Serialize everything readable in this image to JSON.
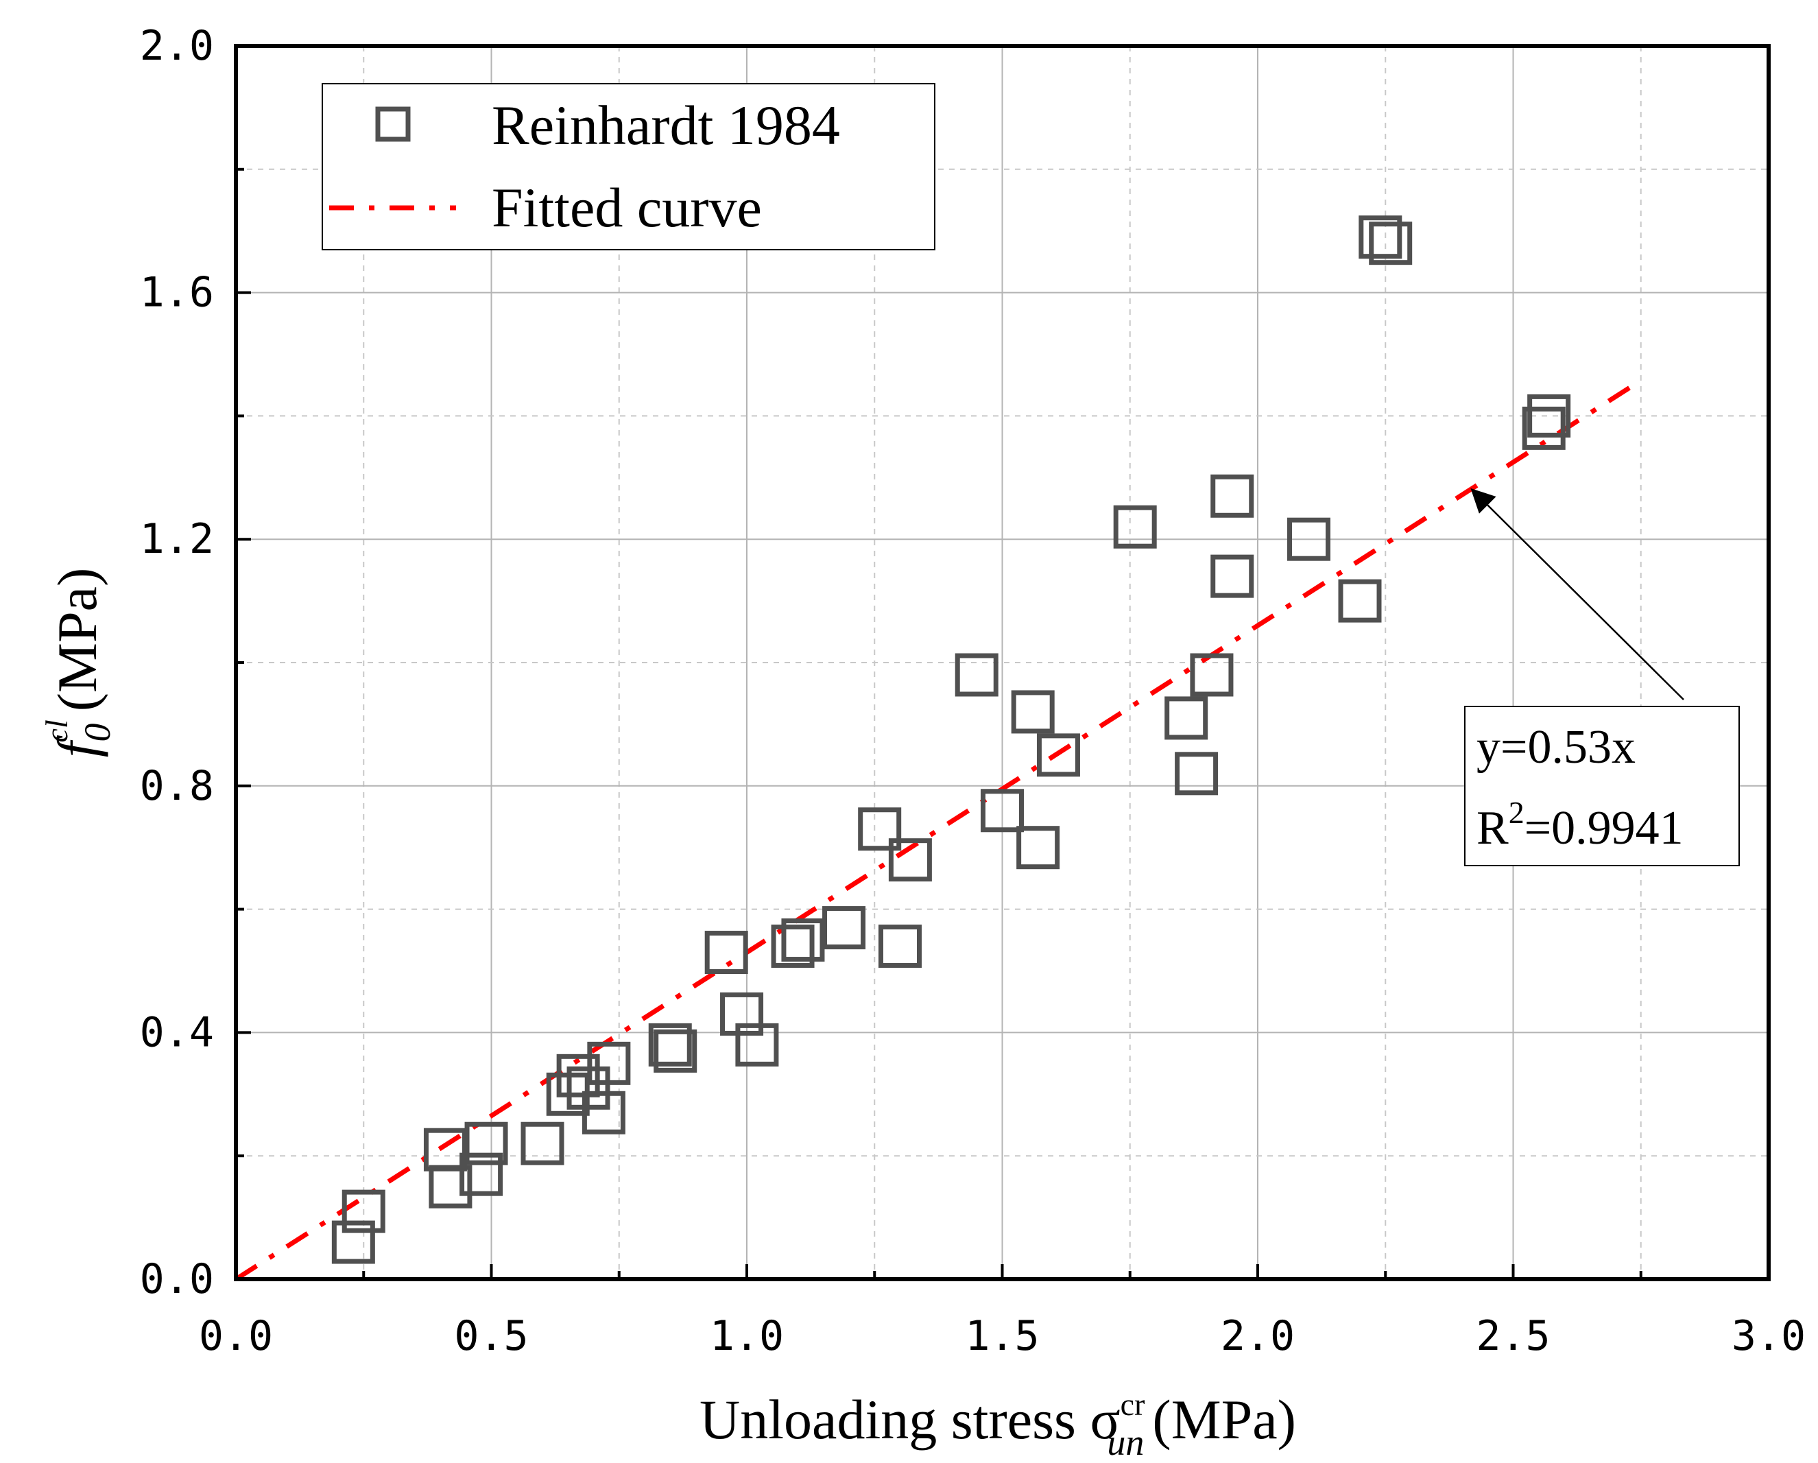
{
  "chart_data": {
    "type": "scatter",
    "title": "",
    "xlabel": {
      "main": "Unloading stress σ",
      "superscript": "cr",
      "subscript": "un",
      "unit": "(MPa)"
    },
    "ylabel": {
      "main": "f",
      "superscript": "cl",
      "subscript": "0",
      "unit": "(MPa)"
    },
    "xlim": [
      0.0,
      3.0
    ],
    "ylim": [
      0.0,
      2.0
    ],
    "xticks": [
      "0.0",
      "0.5",
      "1.0",
      "1.5",
      "2.0",
      "2.5",
      "3.0"
    ],
    "yticks": [
      "0.0",
      "0.4",
      "0.8",
      "1.2",
      "1.6",
      "2.0"
    ],
    "grid": true,
    "legend_position": "top-left",
    "series": [
      {
        "name": "Reinhardt 1984",
        "marker": "open-square",
        "color": "#505050",
        "points": [
          [
            0.23,
            0.06
          ],
          [
            0.25,
            0.11
          ],
          [
            0.41,
            0.21
          ],
          [
            0.42,
            0.15
          ],
          [
            0.48,
            0.17
          ],
          [
            0.49,
            0.22
          ],
          [
            0.6,
            0.22
          ],
          [
            0.65,
            0.3
          ],
          [
            0.67,
            0.33
          ],
          [
            0.69,
            0.31
          ],
          [
            0.72,
            0.27
          ],
          [
            0.73,
            0.35
          ],
          [
            0.85,
            0.38
          ],
          [
            0.86,
            0.37
          ],
          [
            0.96,
            0.53
          ],
          [
            0.99,
            0.43
          ],
          [
            1.02,
            0.38
          ],
          [
            1.09,
            0.54
          ],
          [
            1.11,
            0.55
          ],
          [
            1.19,
            0.57
          ],
          [
            1.26,
            0.73
          ],
          [
            1.3,
            0.54
          ],
          [
            1.32,
            0.68
          ],
          [
            1.45,
            0.98
          ],
          [
            1.5,
            0.76
          ],
          [
            1.56,
            0.92
          ],
          [
            1.57,
            0.7
          ],
          [
            1.61,
            0.85
          ],
          [
            1.76,
            1.22
          ],
          [
            1.86,
            0.91
          ],
          [
            1.88,
            0.82
          ],
          [
            1.91,
            0.98
          ],
          [
            1.95,
            1.27
          ],
          [
            1.95,
            1.14
          ],
          [
            2.1,
            1.2
          ],
          [
            2.2,
            1.1
          ],
          [
            2.24,
            1.69
          ],
          [
            2.26,
            1.68
          ],
          [
            2.56,
            1.38
          ],
          [
            2.57,
            1.4
          ]
        ]
      },
      {
        "name": "Fitted curve",
        "type": "line",
        "style": "dash-dot",
        "color": "#ff0000",
        "slope": 0.53,
        "x_range": [
          0.0,
          2.75
        ]
      }
    ],
    "annotation": {
      "line1": "y=0.53x",
      "line2_base": "R",
      "line2_sup": "2",
      "line2_rest": "=0.9941",
      "points_to": [
        2.42,
        1.28
      ]
    }
  }
}
